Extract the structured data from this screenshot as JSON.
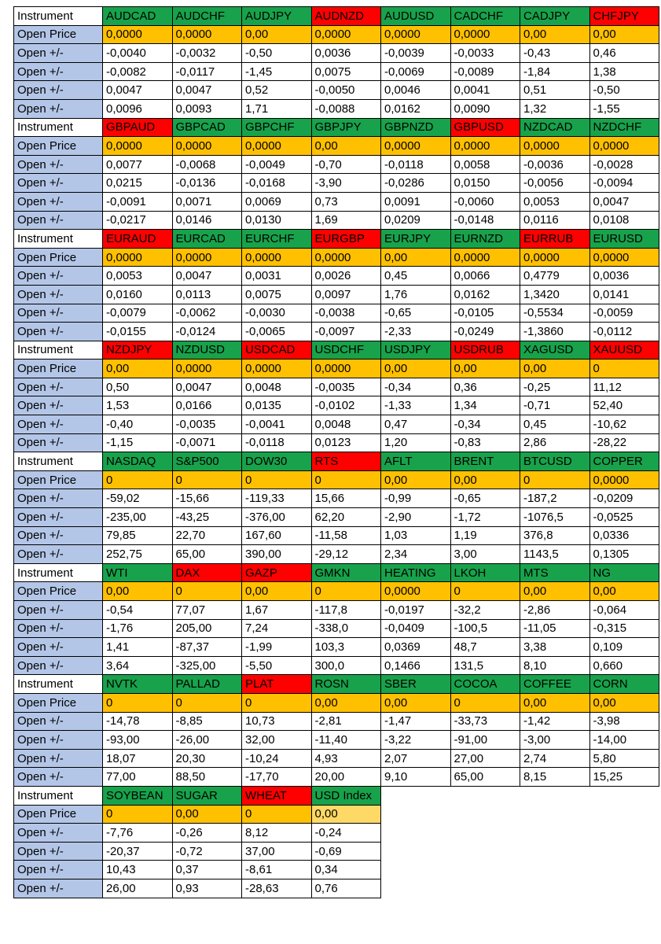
{
  "labels": {
    "instrument": "Instrument",
    "open_price": "Open Price",
    "open_change": "Open +/-"
  },
  "colors": {
    "header_green": "#18A24B",
    "header_red": "#FF0000",
    "price_gold": "#FFC000",
    "price_gold_light": "#FFD966",
    "label_blue": "#B4C6E7",
    "grid_border": "#000000",
    "text": "#000000"
  },
  "blocks": [
    {
      "instruments": [
        {
          "name": "AUDCAD",
          "color": "green"
        },
        {
          "name": "AUDCHF",
          "color": "green"
        },
        {
          "name": "AUDJPY",
          "color": "green"
        },
        {
          "name": "AUDNZD",
          "color": "red"
        },
        {
          "name": "AUDUSD",
          "color": "green"
        },
        {
          "name": "CADCHF",
          "color": "green"
        },
        {
          "name": "CADJPY",
          "color": "green"
        },
        {
          "name": "CHFJPY",
          "color": "red"
        }
      ],
      "open_price": [
        "0,0000",
        "0,0000",
        "0,00",
        "0,0000",
        "0,0000",
        "0,0000",
        "0,00",
        "0,00"
      ],
      "open_changes": [
        [
          "-0,0040",
          "-0,0032",
          "-0,50",
          "0,0036",
          "-0,0039",
          "-0,0033",
          "-0,43",
          "0,46"
        ],
        [
          "-0,0082",
          "-0,0117",
          "-1,45",
          "0,0075",
          "-0,0069",
          "-0,0089",
          "-1,84",
          "1,38"
        ],
        [
          "0,0047",
          "0,0047",
          "0,52",
          "-0,0050",
          "0,0046",
          "0,0041",
          "0,51",
          "-0,50"
        ],
        [
          "0,0096",
          "0,0093",
          "1,71",
          "-0,0088",
          "0,0162",
          "0,0090",
          "1,32",
          "-1,55"
        ]
      ]
    },
    {
      "instruments": [
        {
          "name": "GBPAUD",
          "color": "red"
        },
        {
          "name": "GBPCAD",
          "color": "green"
        },
        {
          "name": "GBPCHF",
          "color": "green"
        },
        {
          "name": "GBPJPY",
          "color": "green"
        },
        {
          "name": "GBPNZD",
          "color": "green"
        },
        {
          "name": "GBPUSD",
          "color": "red"
        },
        {
          "name": "NZDCAD",
          "color": "green"
        },
        {
          "name": "NZDCHF",
          "color": "green"
        }
      ],
      "open_price": [
        "0,0000",
        "0,0000",
        "0,0000",
        "0,00",
        "0,0000",
        "0,0000",
        "0,0000",
        "0,0000"
      ],
      "open_changes": [
        [
          "0,0077",
          "-0,0068",
          "-0,0049",
          "-0,70",
          "-0,0118",
          "0,0058",
          "-0,0036",
          "-0,0028"
        ],
        [
          "0,0215",
          "-0,0136",
          "-0,0168",
          "-3,90",
          "-0,0286",
          "0,0150",
          "-0,0056",
          "-0,0094"
        ],
        [
          "-0,0091",
          "0,0071",
          "0,0069",
          "0,73",
          "0,0091",
          "-0,0060",
          "0,0053",
          "0,0047"
        ],
        [
          "-0,0217",
          "0,0146",
          "0,0130",
          "1,69",
          "0,0209",
          "-0,0148",
          "0,0116",
          "0,0108"
        ]
      ]
    },
    {
      "instruments": [
        {
          "name": "EURAUD",
          "color": "red"
        },
        {
          "name": "EURCAD",
          "color": "green"
        },
        {
          "name": "EURCHF",
          "color": "green"
        },
        {
          "name": "EURGBP",
          "color": "red"
        },
        {
          "name": "EURJPY",
          "color": "green"
        },
        {
          "name": "EURNZD",
          "color": "green"
        },
        {
          "name": "EURRUB",
          "color": "red"
        },
        {
          "name": "EURUSD",
          "color": "green"
        }
      ],
      "open_price": [
        "0,0000",
        "0,0000",
        "0,0000",
        "0,0000",
        "0,00",
        "0,0000",
        "0,0000",
        "0,0000"
      ],
      "open_changes": [
        [
          "0,0053",
          "0,0047",
          "0,0031",
          "0,0026",
          "0,45",
          "0,0066",
          "0,4779",
          "0,0036"
        ],
        [
          "0,0160",
          "0,0113",
          "0,0075",
          "0,0097",
          "1,76",
          "0,0162",
          "1,3420",
          "0,0141"
        ],
        [
          "-0,0079",
          "-0,0062",
          "-0,0030",
          "-0,0038",
          "-0,65",
          "-0,0105",
          "-0,5534",
          "-0,0059"
        ],
        [
          "-0,0155",
          "-0,0124",
          "-0,0065",
          "-0,0097",
          "-2,33",
          "-0,0249",
          "-1,3860",
          "-0,0112"
        ]
      ]
    },
    {
      "instruments": [
        {
          "name": "NZDJPY",
          "color": "red"
        },
        {
          "name": "NZDUSD",
          "color": "green"
        },
        {
          "name": "USDCAD",
          "color": "red"
        },
        {
          "name": "USDCHF",
          "color": "green"
        },
        {
          "name": "USDJPY",
          "color": "green"
        },
        {
          "name": "USDRUB",
          "color": "red"
        },
        {
          "name": "XAGUSD",
          "color": "green"
        },
        {
          "name": "XAUUSD",
          "color": "red"
        }
      ],
      "open_price": [
        "0,00",
        "0,0000",
        "0,0000",
        "0,0000",
        "0,00",
        "0,00",
        "0,00",
        "0"
      ],
      "open_changes": [
        [
          "0,50",
          "0,0047",
          "0,0048",
          "-0,0035",
          "-0,34",
          "0,36",
          "-0,25",
          "11,12"
        ],
        [
          "1,53",
          "0,0166",
          "0,0135",
          "-0,0102",
          "-1,33",
          "1,34",
          "-0,71",
          "52,40"
        ],
        [
          "-0,40",
          "-0,0035",
          "-0,0041",
          "0,0048",
          "0,47",
          "-0,34",
          "0,45",
          "-10,62"
        ],
        [
          "-1,15",
          "-0,0071",
          "-0,0118",
          "0,0123",
          "1,20",
          "-0,83",
          "2,86",
          "-28,22"
        ]
      ]
    },
    {
      "instruments": [
        {
          "name": "NASDAQ",
          "color": "green"
        },
        {
          "name": "S&P500",
          "color": "green"
        },
        {
          "name": "DOW30",
          "color": "green"
        },
        {
          "name": "RTS",
          "color": "red"
        },
        {
          "name": "AFLT",
          "color": "green"
        },
        {
          "name": "BRENT",
          "color": "green"
        },
        {
          "name": "BTCUSD",
          "color": "green"
        },
        {
          "name": "COPPER",
          "color": "green"
        }
      ],
      "open_price": [
        "0",
        "0",
        "0",
        "0",
        "0,00",
        "0,00",
        "0",
        "0,0000"
      ],
      "open_changes": [
        [
          "-59,02",
          "-15,66",
          "-119,33",
          "15,66",
          "-0,99",
          "-0,65",
          "-187,2",
          "-0,0209"
        ],
        [
          "-235,00",
          "-43,25",
          "-376,00",
          "62,20",
          "-2,90",
          "-1,72",
          "-1076,5",
          "-0,0525"
        ],
        [
          "79,85",
          "22,70",
          "167,60",
          "-11,58",
          "1,03",
          "1,19",
          "376,8",
          "0,0336"
        ],
        [
          "252,75",
          "65,00",
          "390,00",
          "-29,12",
          "2,34",
          "3,00",
          "1143,5",
          "0,1305"
        ]
      ]
    },
    {
      "instruments": [
        {
          "name": "WTI",
          "color": "green"
        },
        {
          "name": "DAX",
          "color": "red"
        },
        {
          "name": "GAZP",
          "color": "red"
        },
        {
          "name": "GMKN",
          "color": "green"
        },
        {
          "name": "HEATING",
          "color": "green"
        },
        {
          "name": "LKOH",
          "color": "green"
        },
        {
          "name": "MTS",
          "color": "green"
        },
        {
          "name": "NG",
          "color": "green"
        }
      ],
      "open_price": [
        "0,00",
        "0",
        "0,00",
        "0",
        "0,0000",
        "0",
        "0,00",
        "0,00"
      ],
      "open_changes": [
        [
          "-0,54",
          "77,07",
          "1,67",
          "-117,8",
          "-0,0197",
          "-32,2",
          "-2,86",
          "-0,064"
        ],
        [
          "-1,76",
          "205,00",
          "7,24",
          "-338,0",
          "-0,0409",
          "-100,5",
          "-11,05",
          "-0,315"
        ],
        [
          "1,41",
          "-87,37",
          "-1,99",
          "103,3",
          "0,0369",
          "48,7",
          "3,38",
          "0,109"
        ],
        [
          "3,64",
          "-325,00",
          "-5,50",
          "300,0",
          "0,1466",
          "131,5",
          "8,10",
          "0,660"
        ]
      ]
    },
    {
      "instruments": [
        {
          "name": "NVTK",
          "color": "green"
        },
        {
          "name": "PALLAD",
          "color": "green"
        },
        {
          "name": "PLAT",
          "color": "red"
        },
        {
          "name": "ROSN",
          "color": "green"
        },
        {
          "name": "SBER",
          "color": "green"
        },
        {
          "name": "COCOA",
          "color": "green"
        },
        {
          "name": "COFFEE",
          "color": "green"
        },
        {
          "name": "CORN",
          "color": "green"
        }
      ],
      "open_price": [
        "0",
        "0",
        "0",
        "0,00",
        "0,00",
        "0",
        "0,00",
        "0,00"
      ],
      "open_changes": [
        [
          "-14,78",
          "-8,85",
          "10,73",
          "-2,81",
          "-1,47",
          "-33,73",
          "-1,42",
          "-3,98"
        ],
        [
          "-93,00",
          "-26,00",
          "32,00",
          "-11,40",
          "-3,22",
          "-91,00",
          "-3,00",
          "-14,00"
        ],
        [
          "18,07",
          "20,30",
          "-10,24",
          "4,93",
          "2,07",
          "27,00",
          "2,74",
          "5,80"
        ],
        [
          "77,00",
          "88,50",
          "-17,70",
          "20,00",
          "9,10",
          "65,00",
          "8,15",
          "15,25"
        ]
      ]
    },
    {
      "instruments": [
        {
          "name": "SOYBEAN",
          "color": "green"
        },
        {
          "name": "SUGAR",
          "color": "green"
        },
        {
          "name": "WHEAT",
          "color": "red"
        },
        {
          "name": "USD Index",
          "color": "green",
          "price_style": "light"
        }
      ],
      "open_price": [
        "0",
        "0,00",
        "0",
        "0,00"
      ],
      "open_changes": [
        [
          "-7,76",
          "-0,26",
          "8,12",
          "-0,24"
        ],
        [
          "-20,37",
          "-0,72",
          "37,00",
          "-0,69"
        ],
        [
          "10,43",
          "0,37",
          "-8,61",
          "0,34"
        ],
        [
          "26,00",
          "0,93",
          "-28,63",
          "0,76"
        ]
      ]
    }
  ]
}
